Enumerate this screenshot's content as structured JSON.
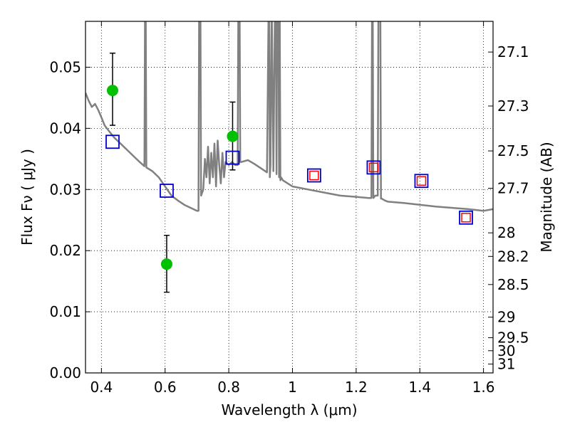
{
  "chart_data": {
    "type": "scatter",
    "title": "",
    "xlabel": "Wavelength  λ (μm)",
    "ylabel": "Flux  Fν  ( μJy )",
    "y2label": "Magnitude (AB)",
    "xlim": [
      0.35,
      1.63
    ],
    "ylim": [
      0.0,
      0.0575
    ],
    "grid": true,
    "x_ticks": [
      0.4,
      0.6,
      0.8,
      1.0,
      1.2,
      1.4,
      1.6
    ],
    "x_tick_labels": [
      "0.4",
      "0.6",
      "0.8",
      "1",
      "1.2",
      "1.4",
      "1.6"
    ],
    "y_ticks": [
      0.0,
      0.01,
      0.02,
      0.03,
      0.04,
      0.05
    ],
    "y_tick_labels": [
      "0.00",
      "0.01",
      "0.02",
      "0.03",
      "0.04",
      "0.05"
    ],
    "y2_ticks_mag": [
      27.1,
      27.3,
      27.5,
      27.7,
      28,
      28.2,
      28.5,
      29,
      29.5,
      30,
      31
    ],
    "y2_tick_labels": [
      "27.1",
      "27.3",
      "27.5",
      "27.7",
      "28",
      "28.2",
      "28.5",
      "29",
      "29.5",
      "30",
      "31"
    ],
    "series": [
      {
        "type": "line",
        "color": "#808080",
        "x": [
          0.35,
          0.36,
          0.37,
          0.38,
          0.39,
          0.4,
          0.41,
          0.42,
          0.44,
          0.46,
          0.48,
          0.5,
          0.52,
          0.535,
          0.537,
          0.539,
          0.541,
          0.56,
          0.58,
          0.6,
          0.62,
          0.64,
          0.66,
          0.68,
          0.7,
          0.705,
          0.707,
          0.709,
          0.711,
          0.713,
          0.72,
          0.725,
          0.73,
          0.735,
          0.74,
          0.745,
          0.75,
          0.755,
          0.76,
          0.765,
          0.77,
          0.775,
          0.78,
          0.785,
          0.79,
          0.8,
          0.81,
          0.82,
          0.828,
          0.83,
          0.832,
          0.834,
          0.836,
          0.84,
          0.86,
          0.88,
          0.9,
          0.92,
          0.925,
          0.927,
          0.929,
          0.931,
          0.935,
          0.94,
          0.945,
          0.948,
          0.95,
          0.952,
          0.954,
          0.956,
          0.958,
          0.96,
          0.962,
          0.964,
          0.97,
          1.0,
          1.05,
          1.1,
          1.15,
          1.2,
          1.24,
          1.248,
          1.25,
          1.252,
          1.254,
          1.26,
          1.268,
          1.27,
          1.272,
          1.274,
          1.276,
          1.278,
          1.28,
          1.29,
          1.3,
          1.35,
          1.4,
          1.45,
          1.5,
          1.55,
          1.6,
          1.63
        ],
        "y": [
          0.0458,
          0.0445,
          0.0435,
          0.044,
          0.043,
          0.0418,
          0.0405,
          0.0398,
          0.0385,
          0.0375,
          0.0365,
          0.0355,
          0.0345,
          0.0338,
          0.06,
          0.06,
          0.0336,
          0.033,
          0.032,
          0.0305,
          0.029,
          0.0282,
          0.0275,
          0.027,
          0.0265,
          0.0265,
          0.06,
          0.06,
          0.06,
          0.029,
          0.03,
          0.035,
          0.032,
          0.037,
          0.031,
          0.036,
          0.032,
          0.0375,
          0.0305,
          0.038,
          0.034,
          0.031,
          0.036,
          0.032,
          0.0345,
          0.034,
          0.0345,
          0.034,
          0.034,
          0.06,
          0.06,
          0.06,
          0.0345,
          0.0345,
          0.0348,
          0.0342,
          0.0335,
          0.0328,
          0.06,
          0.06,
          0.032,
          0.034,
          0.06,
          0.033,
          0.06,
          0.06,
          0.0325,
          0.06,
          0.06,
          0.06,
          0.032,
          0.06,
          0.0315,
          0.032,
          0.0315,
          0.0305,
          0.03,
          0.0295,
          0.029,
          0.0288,
          0.0286,
          0.0286,
          0.06,
          0.06,
          0.0286,
          0.029,
          0.029,
          0.06,
          0.06,
          0.06,
          0.06,
          0.0285,
          0.0285,
          0.0282,
          0.028,
          0.0278,
          0.0275,
          0.0272,
          0.027,
          0.0268,
          0.0265,
          0.0268
        ]
      },
      {
        "type": "points",
        "marker": "circle",
        "color": "#00c000",
        "x": [
          0.435,
          0.605,
          0.812
        ],
        "y": [
          0.0462,
          0.0178,
          0.0387
        ],
        "yerr_low": [
          0.0405,
          0.0132,
          0.0332
        ],
        "yerr_high": [
          0.0523,
          0.0225,
          0.0443
        ]
      },
      {
        "type": "points",
        "marker": "open-square",
        "color": "#0000cc",
        "x": [
          0.435,
          0.605,
          0.812,
          1.068,
          1.255,
          1.405,
          1.545
        ],
        "y": [
          0.0378,
          0.0298,
          0.0352,
          0.0323,
          0.0336,
          0.0314,
          0.0254
        ]
      },
      {
        "type": "points",
        "marker": "small-open-square",
        "color": "#ff0000",
        "x": [
          1.068,
          1.255,
          1.405,
          1.545
        ],
        "y": [
          0.0323,
          0.0336,
          0.0314,
          0.0254
        ]
      }
    ]
  }
}
